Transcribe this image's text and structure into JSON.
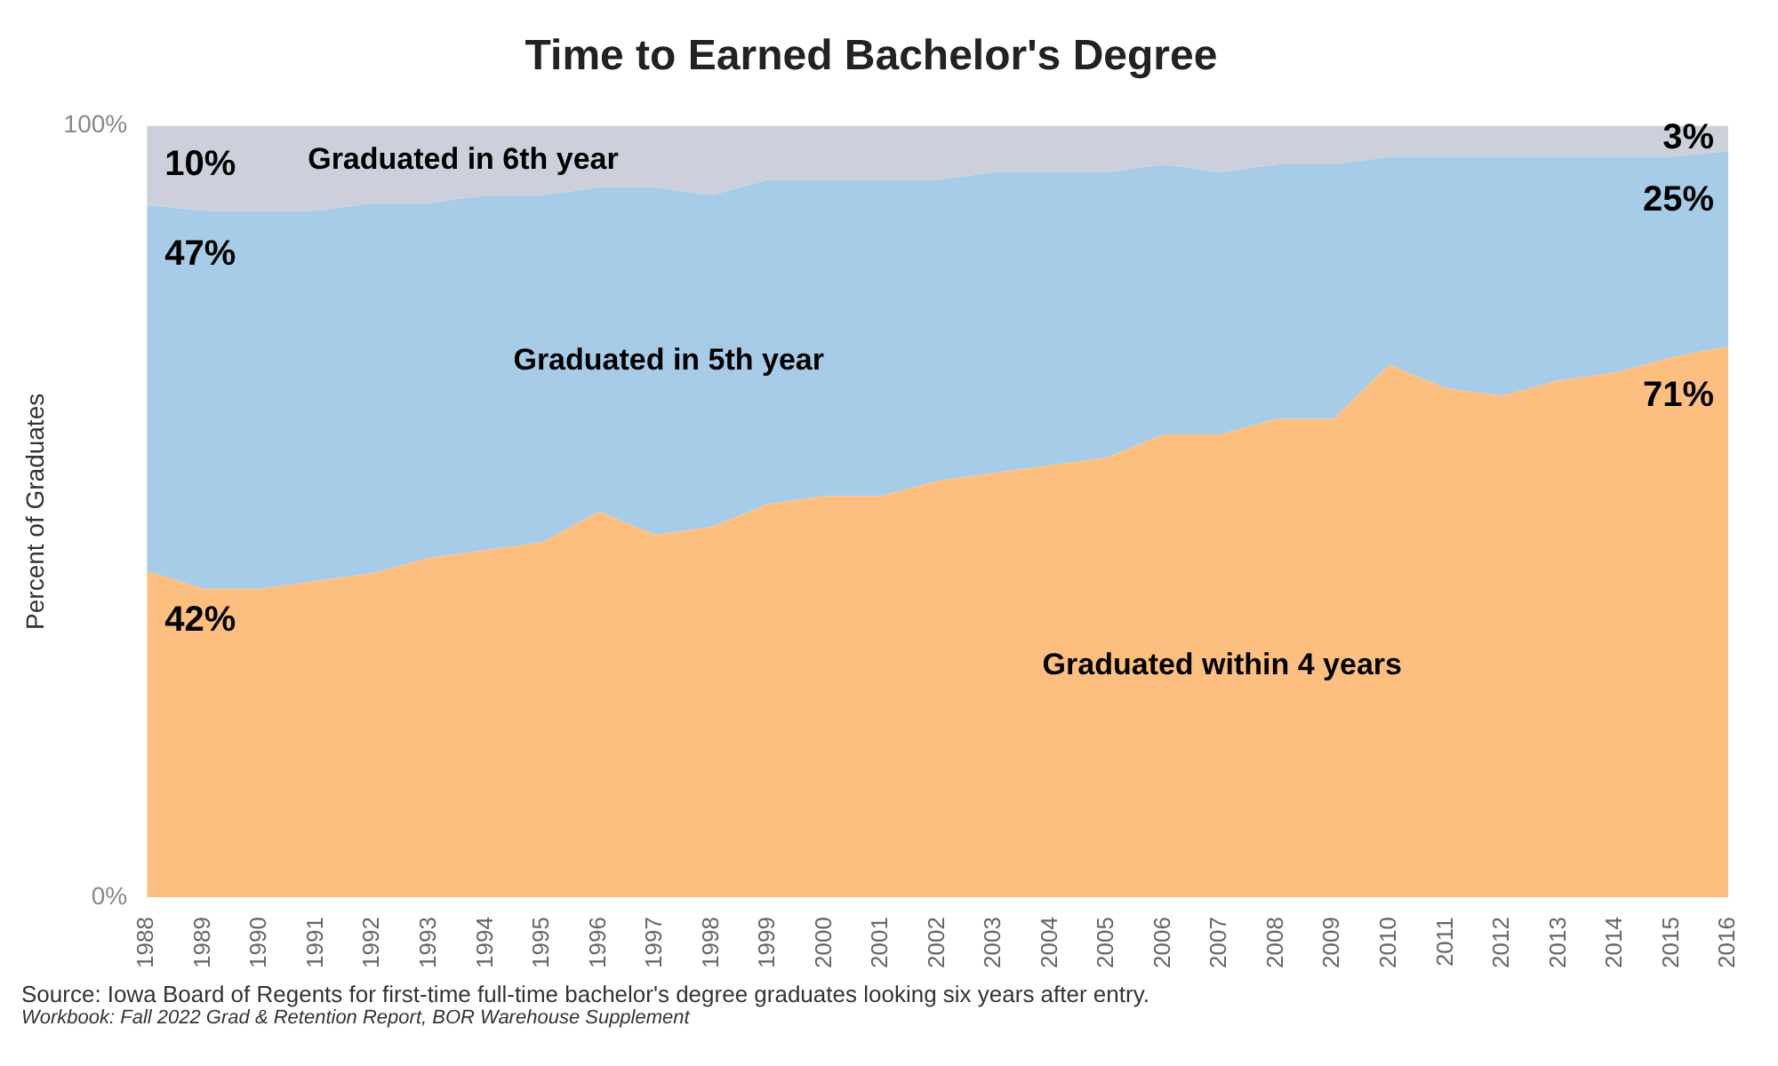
{
  "chart_data": {
    "type": "area",
    "title": "Time to Earned Bachelor's Degree",
    "ylabel": "Percent of Graduates",
    "stacked": true,
    "legend": false,
    "grid": false,
    "categories": [
      "1988",
      "1989",
      "1990",
      "1991",
      "1992",
      "1993",
      "1994",
      "1995",
      "1996",
      "1997",
      "1998",
      "1999",
      "2000",
      "2001",
      "2002",
      "2003",
      "2004",
      "2005",
      "2006",
      "2007",
      "2008",
      "2009",
      "2010",
      "2011",
      "2012",
      "2013",
      "2014",
      "2015",
      "2016"
    ],
    "ylim": [
      0,
      100
    ],
    "yticks": [
      {
        "value": 0,
        "label": "0%"
      },
      {
        "value": 100,
        "label": "100%"
      }
    ],
    "series": [
      {
        "name": "Graduated within 4 years",
        "color": "#fdbf7f",
        "values": [
          42.3,
          40,
          40,
          41,
          42,
          44,
          45,
          46,
          50,
          47,
          48,
          51,
          52,
          52,
          54,
          55,
          56,
          57,
          60,
          60,
          62,
          62,
          69,
          66,
          65,
          67,
          68,
          70,
          71.4
        ],
        "value_labels": [
          "42%",
          null,
          null,
          null,
          null,
          null,
          null,
          null,
          null,
          null,
          null,
          null,
          null,
          null,
          null,
          null,
          null,
          null,
          null,
          null,
          null,
          null,
          null,
          null,
          null,
          null,
          null,
          null,
          "71%"
        ]
      },
      {
        "name": "Graduated in 5th year",
        "color": "#a6cce8",
        "values": [
          47.4,
          49,
          49,
          48,
          48,
          46,
          46,
          45,
          42,
          45,
          43,
          42,
          41,
          41,
          39,
          39,
          38,
          37,
          35,
          34,
          33,
          33,
          27,
          30,
          31,
          29,
          28,
          26,
          25.3
        ],
        "value_labels": [
          "47%",
          null,
          null,
          null,
          null,
          null,
          null,
          null,
          null,
          null,
          null,
          null,
          null,
          null,
          null,
          null,
          null,
          null,
          null,
          null,
          null,
          null,
          null,
          null,
          null,
          null,
          null,
          null,
          "25%"
        ]
      },
      {
        "name": "Graduated in 6th year",
        "color": "#cdd0db",
        "values": [
          10.3,
          11,
          11,
          11,
          10,
          10,
          9,
          9,
          8,
          8,
          9,
          7,
          7,
          7,
          7,
          6,
          6,
          6,
          5,
          6,
          5,
          5,
          4,
          4,
          4,
          4,
          4,
          4,
          3.3
        ],
        "value_labels": [
          "10%",
          null,
          null,
          null,
          null,
          null,
          null,
          null,
          null,
          null,
          null,
          null,
          null,
          null,
          null,
          null,
          null,
          null,
          null,
          null,
          null,
          null,
          null,
          null,
          null,
          null,
          null,
          null,
          "3%"
        ]
      }
    ],
    "annotations": [
      "Source: Iowa Board of Regents for first-time full-time bachelor's degree graduates looking six years after entry.",
      "Workbook: Fall 2022 Grad & Retention Report, BOR Warehouse Supplement"
    ]
  }
}
